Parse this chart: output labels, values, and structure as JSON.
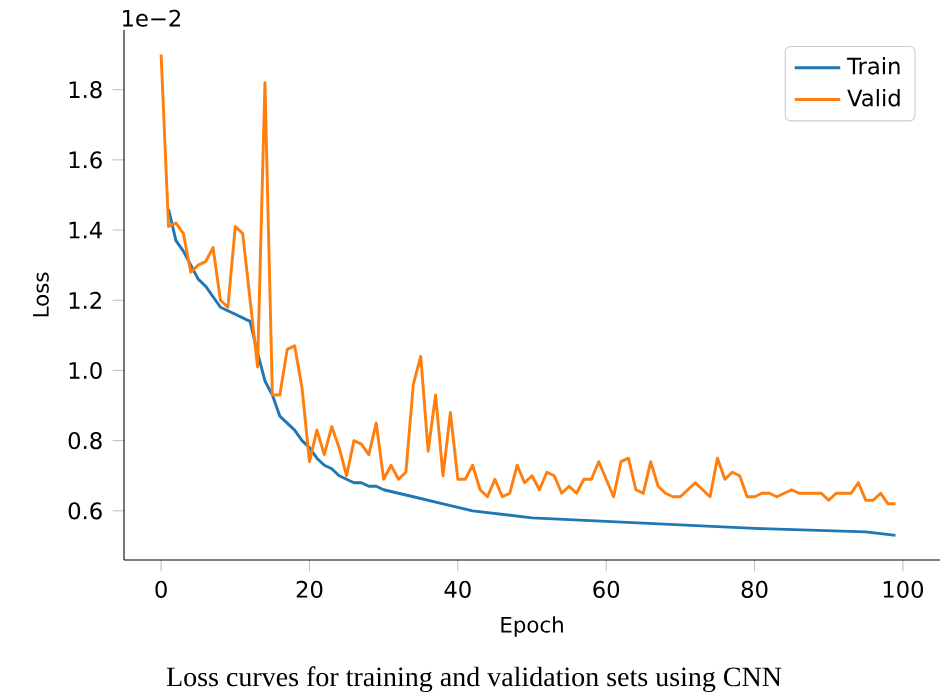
{
  "chart_data": {
    "type": "line",
    "xlabel": "Epoch",
    "ylabel": "Loss",
    "annotations": [
      "1e−2",
      "Loss curves for training and validation sets using CNN"
    ],
    "xlim": [
      -5,
      105
    ],
    "xticks": [
      0,
      20,
      40,
      60,
      80,
      100
    ],
    "ylim": [
      0.46,
      1.97
    ],
    "yticks": [
      0.6,
      0.8,
      {
        "value": 1,
        "label": "1.0"
      },
      1.2,
      1.4,
      1.6,
      1.8
    ],
    "legend": "top right",
    "grid": false,
    "marker": "none",
    "line_style": "solid",
    "series": [
      {
        "name": "Train",
        "color": "#1f77b4",
        "x": [
          1,
          2,
          3,
          4,
          5,
          6,
          7,
          8,
          9,
          10,
          11,
          12,
          13,
          14,
          15,
          16,
          17,
          18,
          19,
          20,
          21,
          22,
          23,
          24,
          25,
          26,
          27,
          28,
          29,
          30,
          32,
          34,
          36,
          38,
          40,
          42,
          50,
          60,
          70,
          80,
          95,
          99
        ],
        "values": [
          1.46,
          1.37,
          1.34,
          1.3,
          1.26,
          1.24,
          1.21,
          1.18,
          1.17,
          1.16,
          1.15,
          1.14,
          1.05,
          0.97,
          0.93,
          0.87,
          0.85,
          0.83,
          0.8,
          0.78,
          0.75,
          0.73,
          0.72,
          0.7,
          0.69,
          0.68,
          0.68,
          0.67,
          0.67,
          0.66,
          0.65,
          0.64,
          0.63,
          0.62,
          0.61,
          0.6,
          0.58,
          0.57,
          0.56,
          0.55,
          0.54,
          0.53
        ]
      },
      {
        "name": "Valid",
        "color": "#ff7f0e",
        "x": [
          0,
          1,
          2,
          3,
          4,
          5,
          6,
          7,
          8,
          9,
          10,
          11,
          12,
          13,
          14,
          15,
          16,
          17,
          18,
          19,
          20,
          21,
          22,
          23,
          24,
          25,
          26,
          27,
          28,
          29,
          30,
          31,
          32,
          33,
          34,
          35,
          36,
          37,
          38,
          39,
          40,
          41,
          42,
          43,
          44,
          45,
          46,
          47,
          48,
          49,
          50,
          51,
          52,
          53,
          54,
          55,
          56,
          57,
          58,
          59,
          60,
          61,
          62,
          63,
          64,
          65,
          66,
          67,
          68,
          69,
          70,
          71,
          72,
          73,
          74,
          75,
          76,
          77,
          78,
          79,
          80,
          81,
          82,
          83,
          84,
          85,
          86,
          87,
          88,
          89,
          90,
          91,
          92,
          93,
          94,
          95,
          96,
          97,
          98,
          99
        ],
        "values": [
          1.9,
          1.41,
          1.42,
          1.39,
          1.28,
          1.3,
          1.31,
          1.35,
          1.2,
          1.18,
          1.41,
          1.39,
          1.2,
          1.01,
          1.82,
          0.93,
          0.93,
          1.06,
          1.07,
          0.95,
          0.74,
          0.83,
          0.76,
          0.84,
          0.78,
          0.7,
          0.8,
          0.79,
          0.76,
          0.85,
          0.69,
          0.73,
          0.69,
          0.71,
          0.96,
          1.04,
          0.77,
          0.93,
          0.7,
          0.88,
          0.69,
          0.69,
          0.73,
          0.66,
          0.64,
          0.69,
          0.64,
          0.65,
          0.73,
          0.68,
          0.7,
          0.66,
          0.71,
          0.7,
          0.65,
          0.67,
          0.65,
          0.69,
          0.69,
          0.74,
          0.69,
          0.64,
          0.74,
          0.75,
          0.66,
          0.65,
          0.74,
          0.67,
          0.65,
          0.64,
          0.64,
          0.66,
          0.68,
          0.66,
          0.64,
          0.75,
          0.69,
          0.71,
          0.7,
          0.64,
          0.64,
          0.65,
          0.65,
          0.64,
          0.65,
          0.66,
          0.65,
          0.65,
          0.65,
          0.65,
          0.63,
          0.65,
          0.65,
          0.65,
          0.68,
          0.63,
          0.63,
          0.65,
          0.62,
          0.62
        ]
      }
    ]
  }
}
